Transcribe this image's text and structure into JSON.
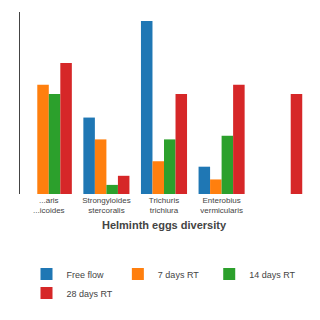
{
  "chart_data": {
    "type": "bar",
    "xlabel": "Helminth eggs diversity",
    "categories": [
      "...aris\n...icoides",
      "Strongyloides\nstercoralis",
      "Trichuris\ntrichiura",
      "Enterobius\nvermicularis",
      null
    ],
    "series": [
      {
        "name": "Free flow",
        "values": [
          0,
          42,
          95,
          15,
          0
        ]
      },
      {
        "name": "7 days RT",
        "values": [
          60,
          30,
          18,
          8,
          0
        ]
      },
      {
        "name": "14 days RT",
        "values": [
          55,
          5,
          30,
          32,
          0
        ]
      },
      {
        "name": "28 days RT",
        "values": [
          72,
          10,
          55,
          60,
          55
        ]
      }
    ],
    "ylim": [
      0,
      100
    ],
    "yticks": [],
    "grid": false,
    "tick_labels": "x",
    "legend": "bottom"
  }
}
